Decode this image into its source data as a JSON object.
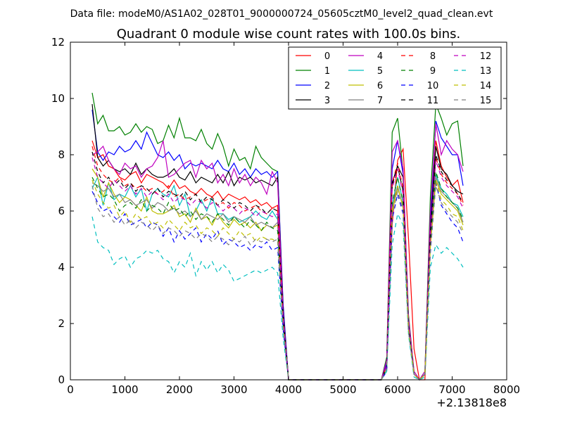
{
  "chart_data": {
    "type": "line",
    "suptitle": "Data file: modeM0/AS1A02_028T01_9000000724_05605cztM0_level2_quad_clean.evt",
    "title": "Quadrant 0 module wise count rates with 100.0s bins.",
    "xlabel": "",
    "ylabel": "",
    "x_offset_label": "+2.13818e8",
    "xlim": [
      0,
      8000
    ],
    "ylim": [
      0,
      12
    ],
    "xticks": [
      0,
      1000,
      2000,
      3000,
      4000,
      5000,
      6000,
      7000,
      8000
    ],
    "xtick_labels": [
      "0",
      "1000",
      "2000",
      "3000",
      "4000",
      "5000",
      "6000",
      "7000",
      "8000"
    ],
    "yticks": [
      0,
      2,
      4,
      6,
      8,
      10,
      12
    ],
    "ytick_labels": [
      "0",
      "2",
      "4",
      "6",
      "8",
      "10",
      "12"
    ],
    "grid": false,
    "legend_position": "top-right",
    "x": [
      400,
      500,
      600,
      700,
      800,
      900,
      1000,
      1100,
      1200,
      1300,
      1400,
      1500,
      1600,
      1700,
      1800,
      1900,
      2000,
      2100,
      2200,
      2300,
      2400,
      2500,
      2600,
      2700,
      2800,
      2900,
      3000,
      3100,
      3200,
      3300,
      3400,
      3500,
      3600,
      3700,
      3800,
      3900,
      4000,
      4100,
      4200,
      4300,
      4400,
      4500,
      4600,
      4700,
      4800,
      4900,
      5000,
      5100,
      5200,
      5300,
      5400,
      5500,
      5600,
      5700,
      5800,
      5900,
      6000,
      6100,
      6200,
      6300,
      6400,
      6500,
      6600,
      6700,
      6800,
      6900,
      7000,
      7100,
      7200
    ],
    "series": [
      {
        "name": "0",
        "color": "#ff0000",
        "dash": false,
        "values": [
          8.5,
          7.9,
          8.0,
          7.6,
          7.5,
          7.2,
          7.1,
          7.3,
          7.4,
          7.0,
          7.3,
          7.2,
          7.1,
          7.0,
          6.8,
          7.1,
          6.8,
          6.9,
          6.7,
          6.6,
          6.8,
          6.6,
          6.5,
          6.7,
          6.4,
          6.6,
          6.5,
          6.4,
          6.5,
          6.3,
          6.4,
          6.2,
          6.3,
          6.1,
          6.2,
          2.3,
          0,
          0,
          0,
          0,
          0,
          0,
          0,
          0,
          0,
          0,
          0,
          0,
          0,
          0,
          0,
          0,
          0,
          0,
          0.5,
          5.5,
          7.8,
          8.2,
          5.0,
          1.1,
          0,
          0,
          5.2,
          8.5,
          7.6,
          7.2,
          6.9,
          7.1,
          6.3
        ]
      },
      {
        "name": "1",
        "color": "#008000",
        "dash": false,
        "values": [
          10.2,
          9.1,
          9.4,
          8.85,
          8.85,
          9.0,
          8.7,
          8.8,
          9.1,
          8.8,
          9.0,
          8.9,
          8.4,
          8.5,
          9.05,
          8.6,
          9.3,
          8.6,
          8.6,
          8.5,
          8.9,
          8.4,
          8.2,
          8.75,
          8.3,
          7.6,
          8.2,
          7.8,
          7.9,
          7.5,
          8.3,
          7.9,
          7.7,
          7.5,
          7.4,
          2.6,
          0,
          0,
          0,
          0,
          0,
          0,
          0,
          0,
          0,
          0,
          0,
          0,
          0,
          0,
          0,
          0,
          0,
          0,
          0.8,
          8.8,
          9.3,
          7.4,
          2.3,
          0.3,
          0,
          0.3,
          6.5,
          9.8,
          9.3,
          8.7,
          9.1,
          9.2,
          7.6
        ]
      },
      {
        "name": "2",
        "color": "#0000ff",
        "dash": false,
        "values": [
          9.6,
          8.1,
          7.8,
          8.1,
          8.0,
          8.3,
          8.1,
          8.2,
          8.5,
          8.2,
          8.8,
          8.4,
          8.0,
          7.9,
          8.1,
          7.8,
          8.0,
          7.5,
          7.7,
          7.6,
          7.7,
          7.6,
          7.5,
          7.8,
          7.5,
          7.4,
          7.7,
          7.3,
          7.5,
          7.2,
          7.5,
          7.3,
          7.4,
          7.2,
          7.4,
          2.7,
          0,
          0,
          0,
          0,
          0,
          0,
          0,
          0,
          0,
          0,
          0,
          0,
          0,
          0,
          0,
          0,
          0,
          0,
          0.6,
          7.5,
          8.5,
          7.3,
          2.0,
          0.2,
          0,
          0.2,
          5.5,
          9.2,
          8.6,
          8.3,
          8.0,
          8.0,
          6.9
        ]
      },
      {
        "name": "3",
        "color": "#000000",
        "dash": false,
        "values": [
          9.8,
          7.9,
          7.6,
          7.8,
          7.5,
          7.4,
          7.5,
          7.3,
          7.7,
          7.3,
          7.5,
          7.3,
          7.2,
          7.2,
          7.3,
          7.5,
          7.2,
          7.1,
          7.4,
          7.0,
          7.2,
          7.1,
          7.0,
          7.3,
          7.0,
          7.4,
          6.9,
          7.2,
          7.1,
          7.2,
          7.0,
          7.1,
          7.0,
          6.9,
          7.2,
          2.5,
          0,
          0,
          0,
          0,
          0,
          0,
          0,
          0,
          0,
          0,
          0,
          0,
          0,
          0,
          0,
          0,
          0,
          0,
          0.5,
          7.0,
          7.6,
          7.2,
          2.0,
          0.2,
          0,
          0.2,
          5.3,
          8.3,
          7.5,
          7.3,
          6.9,
          6.7,
          6.6
        ]
      },
      {
        "name": "4",
        "color": "#bf00bf",
        "dash": false,
        "values": [
          8.0,
          8.1,
          8.3,
          7.8,
          7.5,
          7.3,
          7.7,
          7.5,
          7.6,
          7.2,
          7.5,
          7.6,
          7.9,
          8.5,
          7.2,
          7.3,
          7.5,
          7.7,
          7.8,
          7.2,
          7.8,
          7.5,
          7.7,
          7.0,
          7.3,
          6.9,
          7.5,
          7.0,
          7.3,
          6.9,
          7.2,
          7.0,
          6.6,
          7.4,
          7.0,
          2.4,
          0,
          0,
          0,
          0,
          0,
          0,
          0,
          0,
          0,
          0,
          0,
          0,
          0,
          0,
          0,
          0,
          0,
          0,
          0.7,
          8.1,
          8.5,
          7.5,
          2.2,
          0.3,
          0,
          0.3,
          6.0,
          9.1,
          8.0,
          8.5,
          8.2,
          8.0,
          7.4
        ]
      },
      {
        "name": "5",
        "color": "#00bfbf",
        "dash": false,
        "values": [
          6.8,
          7.2,
          6.2,
          7.0,
          6.4,
          6.6,
          6.5,
          6.9,
          6.5,
          6.8,
          6.0,
          6.6,
          6.8,
          6.6,
          6.5,
          6.9,
          6.2,
          6.6,
          5.8,
          6.0,
          6.4,
          6.0,
          6.5,
          5.9,
          5.9,
          5.7,
          5.8,
          5.6,
          5.7,
          5.8,
          6.0,
          5.8,
          5.7,
          6.0,
          5.7,
          2.2,
          0,
          0,
          0,
          0,
          0,
          0,
          0,
          0,
          0,
          0,
          0,
          0,
          0,
          0,
          0,
          0,
          0,
          0,
          0.4,
          6.2,
          7.2,
          6.3,
          1.9,
          0.2,
          0,
          0.2,
          5.0,
          7.3,
          6.8,
          6.6,
          6.3,
          6.2,
          5.8
        ]
      },
      {
        "name": "6",
        "color": "#bfbf00",
        "dash": false,
        "values": [
          7.5,
          7.2,
          6.5,
          7.0,
          6.6,
          6.3,
          6.5,
          6.4,
          6.2,
          6.0,
          6.5,
          6.0,
          5.9,
          5.9,
          6.0,
          6.2,
          5.8,
          5.9,
          5.6,
          6.1,
          5.7,
          5.8,
          5.5,
          5.9,
          5.6,
          5.4,
          5.7,
          5.5,
          5.6,
          5.4,
          5.6,
          5.3,
          5.5,
          5.4,
          5.5,
          2.1,
          0,
          0,
          0,
          0,
          0,
          0,
          0,
          0,
          0,
          0,
          0,
          0,
          0,
          0,
          0,
          0,
          0,
          0,
          0.4,
          6.0,
          6.8,
          6.2,
          1.8,
          0.2,
          0,
          0.2,
          4.8,
          7.1,
          6.6,
          6.4,
          6.2,
          6.0,
          5.5
        ]
      },
      {
        "name": "7",
        "color": "#808080",
        "dash": false,
        "values": [
          7.0,
          6.9,
          6.7,
          6.8,
          6.5,
          6.6,
          6.3,
          6.4,
          6.2,
          6.3,
          6.4,
          6.1,
          6.3,
          6.2,
          6.0,
          6.1,
          5.9,
          6.0,
          5.8,
          6.0,
          5.7,
          5.9,
          5.8,
          5.7,
          5.9,
          5.6,
          5.8,
          5.7,
          5.6,
          5.8,
          5.5,
          5.6,
          5.5,
          5.4,
          5.6,
          2.1,
          0,
          0,
          0,
          0,
          0,
          0,
          0,
          0,
          0,
          0,
          0,
          0,
          0,
          0,
          0,
          0,
          0,
          0,
          0.4,
          6.1,
          6.9,
          6.1,
          1.8,
          0.2,
          0,
          0.2,
          4.9,
          7.2,
          6.7,
          6.5,
          6.3,
          6.1,
          5.6
        ]
      },
      {
        "name": "8",
        "color": "#ff0000",
        "dash": true,
        "values": [
          8.3,
          7.6,
          7.3,
          7.1,
          7.0,
          7.2,
          6.9,
          7.0,
          6.8,
          6.9,
          6.7,
          6.8,
          6.6,
          6.7,
          6.9,
          6.5,
          6.6,
          6.4,
          6.5,
          6.6,
          6.3,
          6.4,
          6.5,
          6.2,
          6.3,
          6.1,
          6.3,
          6.2,
          6.0,
          6.1,
          6.2,
          6.0,
          5.9,
          6.1,
          6.0,
          2.2,
          0,
          0,
          0,
          0,
          0,
          0,
          0,
          0,
          0,
          0,
          0,
          0,
          0,
          0,
          0,
          0,
          0,
          0,
          0.5,
          7.0,
          7.7,
          6.8,
          1.9,
          0.2,
          0,
          0.2,
          5.1,
          7.9,
          7.3,
          7.0,
          6.8,
          6.6,
          6.2
        ]
      },
      {
        "name": "9",
        "color": "#008000",
        "dash": true,
        "values": [
          7.2,
          6.8,
          6.5,
          6.6,
          6.4,
          6.0,
          6.2,
          6.3,
          6.1,
          6.4,
          6.0,
          6.2,
          6.1,
          5.9,
          6.3,
          6.0,
          6.1,
          5.8,
          6.0,
          5.7,
          5.9,
          5.8,
          5.6,
          5.9,
          5.7,
          5.5,
          5.8,
          5.6,
          5.4,
          5.7,
          5.5,
          5.3,
          5.6,
          5.4,
          5.3,
          2.0,
          0,
          0,
          0,
          0,
          0,
          0,
          0,
          0,
          0,
          0,
          0,
          0,
          0,
          0,
          0,
          0,
          0,
          0,
          0.4,
          6.3,
          7.2,
          6.3,
          1.8,
          0.2,
          0,
          0.2,
          4.9,
          7.4,
          6.8,
          6.5,
          6.3,
          6.1,
          5.7
        ]
      },
      {
        "name": "10",
        "color": "#0000ff",
        "dash": true,
        "values": [
          6.7,
          6.3,
          6.0,
          6.1,
          5.8,
          5.6,
          5.9,
          5.5,
          5.6,
          5.7,
          5.4,
          5.6,
          5.5,
          5.1,
          5.4,
          4.9,
          5.3,
          5.0,
          5.2,
          5.4,
          4.9,
          5.2,
          5.0,
          5.3,
          4.8,
          5.0,
          4.9,
          4.7,
          4.8,
          4.6,
          4.8,
          4.7,
          4.9,
          4.6,
          4.7,
          1.8,
          0,
          0,
          0,
          0,
          0,
          0,
          0,
          0,
          0,
          0,
          0,
          0,
          0,
          0,
          0,
          0,
          0,
          0,
          0.3,
          5.7,
          6.6,
          5.9,
          1.7,
          0.2,
          0,
          0.2,
          4.5,
          7.0,
          6.2,
          5.9,
          5.6,
          5.4,
          4.9
        ]
      },
      {
        "name": "11",
        "color": "#000000",
        "dash": true,
        "values": [
          8.1,
          7.4,
          7.0,
          7.2,
          6.9,
          7.1,
          6.8,
          7.0,
          6.7,
          6.9,
          6.8,
          6.6,
          6.8,
          6.5,
          6.7,
          6.6,
          6.5,
          6.7,
          6.4,
          6.6,
          6.3,
          6.5,
          6.4,
          6.2,
          6.4,
          6.3,
          6.1,
          6.3,
          6.2,
          6.0,
          6.2,
          6.1,
          5.9,
          6.1,
          6.0,
          2.3,
          0,
          0,
          0,
          0,
          0,
          0,
          0,
          0,
          0,
          0,
          0,
          0,
          0,
          0,
          0,
          0,
          0,
          0,
          0.5,
          6.9,
          7.6,
          6.7,
          1.9,
          0.2,
          0,
          0.2,
          5.2,
          8.0,
          7.4,
          7.1,
          6.9,
          6.6,
          6.3
        ]
      },
      {
        "name": "12",
        "color": "#bf00bf",
        "dash": true,
        "values": [
          7.9,
          7.2,
          7.0,
          6.8,
          7.1,
          6.9,
          6.7,
          6.9,
          6.6,
          6.8,
          6.5,
          6.7,
          6.6,
          6.4,
          6.6,
          6.3,
          6.5,
          6.4,
          6.2,
          6.4,
          6.3,
          6.1,
          6.3,
          6.2,
          6.0,
          6.2,
          6.1,
          5.9,
          6.1,
          6.0,
          5.8,
          6.0,
          5.9,
          5.8,
          5.9,
          2.2,
          0,
          0,
          0,
          0,
          0,
          0,
          0,
          0,
          0,
          0,
          0,
          0,
          0,
          0,
          0,
          0,
          0,
          0,
          0.5,
          6.8,
          7.5,
          6.6,
          1.9,
          0.2,
          0,
          0.2,
          5.1,
          7.8,
          7.2,
          6.9,
          6.7,
          6.5,
          6.1
        ]
      },
      {
        "name": "13",
        "color": "#00bfbf",
        "dash": true,
        "values": [
          5.8,
          4.9,
          4.7,
          4.6,
          4.1,
          4.3,
          4.4,
          4.0,
          4.3,
          4.4,
          4.6,
          4.5,
          4.6,
          4.3,
          4.2,
          3.8,
          4.2,
          4.0,
          4.5,
          3.7,
          4.2,
          3.9,
          4.2,
          3.8,
          4.1,
          3.9,
          3.5,
          3.6,
          3.7,
          3.8,
          3.9,
          3.8,
          3.9,
          4.0,
          3.8,
          1.5,
          0,
          0,
          0,
          0,
          0,
          0,
          0,
          0,
          0,
          0,
          0,
          0,
          0,
          0,
          0,
          0,
          0,
          0,
          0.3,
          4.8,
          5.9,
          5.5,
          1.6,
          0.1,
          0,
          0.1,
          4.0,
          4.8,
          4.5,
          4.7,
          4.5,
          4.3,
          4.0
        ]
      },
      {
        "name": "14",
        "color": "#bfbf00",
        "dash": true,
        "values": [
          7.1,
          6.6,
          6.3,
          6.1,
          6.2,
          5.8,
          6.0,
          5.6,
          5.9,
          5.7,
          5.8,
          5.5,
          5.6,
          5.4,
          5.7,
          5.5,
          5.3,
          5.6,
          5.4,
          5.5,
          5.2,
          5.4,
          5.3,
          5.1,
          5.4,
          5.2,
          5.0,
          5.3,
          5.1,
          5.2,
          4.9,
          5.1,
          5.0,
          5.0,
          4.9,
          1.9,
          0,
          0,
          0,
          0,
          0,
          0,
          0,
          0,
          0,
          0,
          0,
          0,
          0,
          0,
          0,
          0,
          0,
          0,
          0.4,
          6.0,
          6.9,
          6.1,
          1.8,
          0.2,
          0,
          0.2,
          4.7,
          7.1,
          6.4,
          6.2,
          5.9,
          5.8,
          5.3
        ]
      },
      {
        "name": "15",
        "color": "#808080",
        "dash": true,
        "values": [
          6.9,
          6.1,
          5.8,
          5.9,
          5.6,
          5.8,
          5.5,
          5.7,
          5.4,
          5.6,
          5.5,
          5.3,
          5.5,
          5.2,
          5.4,
          5.3,
          5.1,
          5.3,
          5.2,
          5.0,
          5.2,
          5.1,
          4.9,
          5.1,
          5.0,
          4.8,
          5.0,
          4.9,
          5.1,
          4.8,
          5.0,
          4.9,
          5.0,
          4.9,
          5.0,
          1.9,
          0,
          0,
          0,
          0,
          0,
          0,
          0,
          0,
          0,
          0,
          0,
          0,
          0,
          0,
          0,
          0,
          0,
          0,
          0.4,
          5.8,
          6.7,
          6.0,
          1.7,
          0.2,
          0,
          0.2,
          4.6,
          6.9,
          6.3,
          6.0,
          5.8,
          5.6,
          5.2
        ]
      }
    ]
  }
}
